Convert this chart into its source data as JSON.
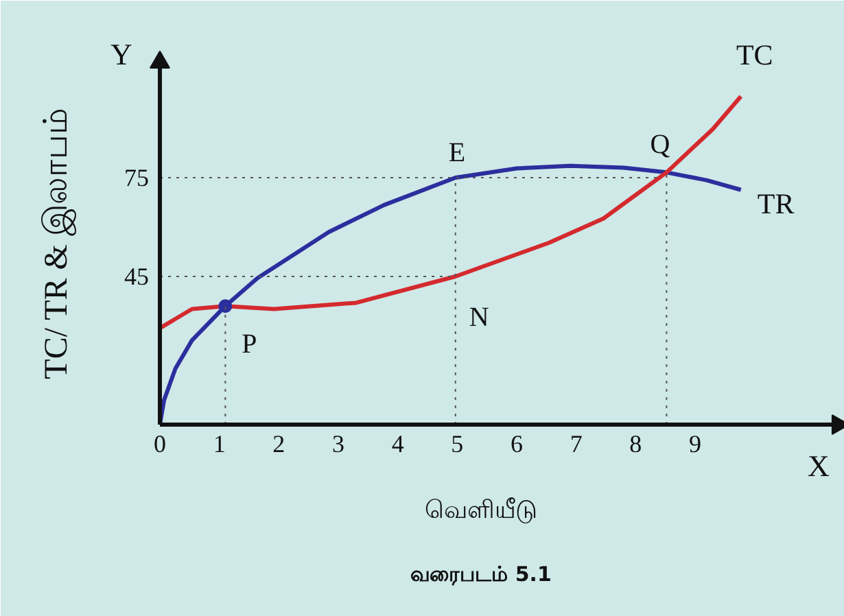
{
  "chart_data": {
    "type": "line",
    "xlabel": "வெளியீடு",
    "ylabel": "TC/ TR & இலாபம்",
    "xlim": [
      0,
      11.4
    ],
    "ylim": [
      0,
      110
    ],
    "xticks": [
      0,
      1,
      2,
      3,
      4,
      5,
      6,
      7,
      8,
      9
    ],
    "yticks": [
      45,
      75
    ],
    "grid": false,
    "legend": false,
    "marker": "none",
    "line_style": "solid",
    "series": [
      {
        "name": "TR",
        "color": "#2b2f9e",
        "x": [
          0,
          0.07,
          0.26,
          0.54,
          1.1,
          1.64,
          2.84,
          3.77,
          4.97,
          6.0,
          6.9,
          7.8,
          8.52,
          9.2,
          9.77
        ],
        "values": [
          0,
          7.4,
          17,
          25.6,
          36,
          44.5,
          58.5,
          66.7,
          75,
          77.8,
          78.6,
          78.0,
          76.6,
          74.2,
          71.3
        ]
      },
      {
        "name": "TC",
        "color": "#d42a2e",
        "x": [
          0,
          0.54,
          1.1,
          1.92,
          3.3,
          4.97,
          6.54,
          7.46,
          8.52,
          9.3,
          9.77
        ],
        "values": [
          29.3,
          35.1,
          36,
          35.1,
          37,
          45,
          55.2,
          62.6,
          76.6,
          89.8,
          99.7
        ]
      },
      {
        "type": "scatter",
        "marker": "circle",
        "color": "#2b2f9e",
        "x": [
          1.1
        ],
        "values": [
          36
        ]
      }
    ],
    "ref_lines": [
      {
        "axis": "y",
        "value": 75,
        "line_style": "dotted",
        "color": "#555555"
      },
      {
        "axis": "y",
        "value": 45,
        "line_style": "dotted",
        "color": "#555555"
      },
      {
        "axis": "x",
        "value": 1.1,
        "line_style": "dotted",
        "color": "#555555"
      },
      {
        "axis": "x",
        "value": 4.97,
        "line_style": "dotted",
        "color": "#555555"
      },
      {
        "axis": "x",
        "value": 8.52,
        "line_style": "dotted",
        "color": "#555555"
      }
    ],
    "annotations": [
      "Y",
      "X",
      "வரைபடம் 5.1",
      {
        "text": "P",
        "x": 1.1,
        "y": 36
      },
      {
        "text": "E",
        "x": 4.97,
        "y": 75
      },
      {
        "text": "N",
        "x": 4.97,
        "y": 45
      },
      {
        "text": "Q",
        "x": 8.52,
        "y": 76.6
      }
    ]
  }
}
